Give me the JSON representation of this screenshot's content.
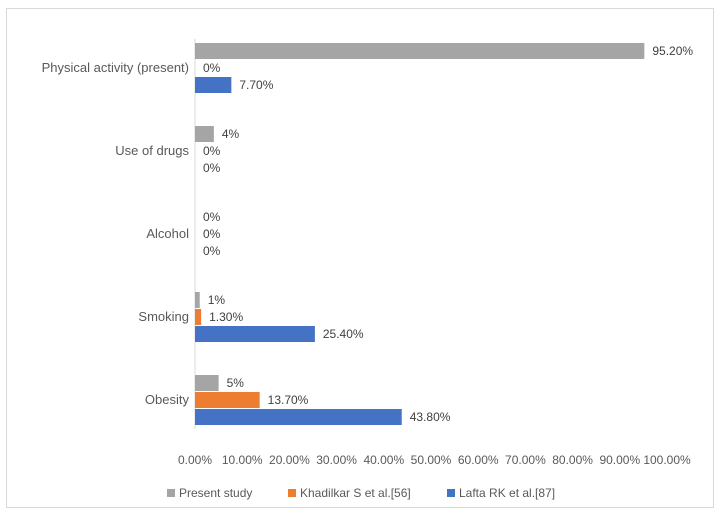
{
  "chart_data": {
    "type": "bar",
    "orientation": "horizontal",
    "categories": [
      "Physical activity (present)",
      "Use of drugs",
      "Alcohol",
      "Smoking",
      "Obesity"
    ],
    "series": [
      {
        "name": "Present study",
        "color": "#a5a5a5",
        "values": [
          95.2,
          4,
          0,
          1,
          5
        ],
        "labels": [
          "95.20%",
          "4%",
          "",
          "1%",
          "5%"
        ]
      },
      {
        "name": "Khadilkar S et al.[56]",
        "color": "#ed7d31",
        "values": [
          0,
          0,
          0,
          1.3,
          13.7
        ],
        "labels": [
          "0%",
          "0%",
          "0%",
          "1.30%",
          "13.70%"
        ]
      },
      {
        "name": "Lafta RK et al.[87]",
        "color": "#4472c4",
        "values": [
          7.7,
          0,
          0,
          25.4,
          43.8
        ],
        "labels": [
          "7.70%",
          "0%",
          "0%",
          "25.40%",
          "43.80%"
        ]
      }
    ],
    "alcohol_present_label": "0%",
    "xlim": [
      0,
      100
    ],
    "xticks": [
      "0.00%",
      "10.00%",
      "20.00%",
      "30.00%",
      "40.00%",
      "50.00%",
      "60.00%",
      "70.00%",
      "80.00%",
      "90.00%",
      "100.00%"
    ],
    "grid": false,
    "legend_position": "bottom",
    "title": "",
    "xlabel": "",
    "ylabel": ""
  }
}
